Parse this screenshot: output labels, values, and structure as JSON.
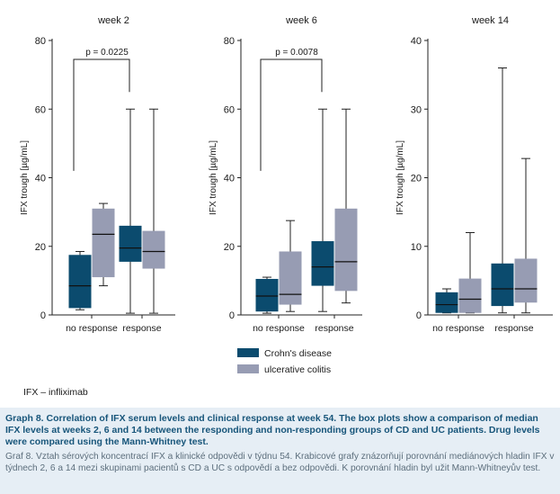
{
  "chart_data": [
    {
      "type": "box",
      "title": "week 2",
      "ylabel": "IFX trough [µg/mL]",
      "ylim": [
        0,
        80
      ],
      "yticks": [
        0,
        20,
        40,
        60,
        80
      ],
      "categories": [
        "no response",
        "response"
      ],
      "series": [
        {
          "name": "Crohn's disease",
          "boxes": [
            {
              "min": 1.5,
              "q1": 2,
              "median": 8.5,
              "q3": 17.5,
              "max": 18.5
            },
            {
              "min": 0.5,
              "q1": 15.5,
              "median": 19.5,
              "q3": 26,
              "max": 60
            }
          ]
        },
        {
          "name": "ulcerative colitis",
          "boxes": [
            {
              "min": 8.5,
              "q1": 11,
              "median": 23.5,
              "q3": 31,
              "max": 32.5
            },
            {
              "min": 0.5,
              "q1": 13.5,
              "median": 18.5,
              "q3": 24.5,
              "max": 60
            }
          ]
        }
      ],
      "annotation": "p = 0.0225"
    },
    {
      "type": "box",
      "title": "week 6",
      "ylabel": "IFX trough [µg/mL]",
      "ylim": [
        0,
        80
      ],
      "yticks": [
        0,
        20,
        40,
        60,
        80
      ],
      "categories": [
        "no response",
        "response"
      ],
      "series": [
        {
          "name": "Crohn's disease",
          "boxes": [
            {
              "min": 0.5,
              "q1": 1,
              "median": 5.5,
              "q3": 10.5,
              "max": 11
            },
            {
              "min": 1,
              "q1": 8.5,
              "median": 14,
              "q3": 21.5,
              "max": 60
            }
          ]
        },
        {
          "name": "ulcerative colitis",
          "boxes": [
            {
              "min": 1,
              "q1": 3,
              "median": 6,
              "q3": 18.5,
              "max": 27.5
            },
            {
              "min": 3.5,
              "q1": 7,
              "median": 15.5,
              "q3": 31,
              "max": 60
            }
          ]
        }
      ],
      "annotation": "p = 0.0078"
    },
    {
      "type": "box",
      "title": "week 14",
      "ylabel": "IFX trough [µg/mL]",
      "ylim": [
        0,
        40
      ],
      "yticks": [
        0,
        10,
        20,
        30,
        40
      ],
      "categories": [
        "no response",
        "response"
      ],
      "series": [
        {
          "name": "Crohn's disease",
          "boxes": [
            {
              "min": 0.3,
              "q1": 0.3,
              "median": 1.5,
              "q3": 3.3,
              "max": 3.8
            },
            {
              "min": 0.3,
              "q1": 1.3,
              "median": 3.8,
              "q3": 7.5,
              "max": 36
            }
          ]
        },
        {
          "name": "ulcerative colitis",
          "boxes": [
            {
              "min": 0.3,
              "q1": 0.3,
              "median": 2.3,
              "q3": 5.3,
              "max": 12
            },
            {
              "min": 0.3,
              "q1": 1.8,
              "median": 3.8,
              "q3": 8.2,
              "max": 22.8
            }
          ]
        }
      ],
      "annotation": ""
    }
  ],
  "legend": [
    {
      "label": "Crohn's disease",
      "color": "#0b4b6e"
    },
    {
      "label": "ulcerative colitis",
      "color": "#979cb3"
    }
  ],
  "abbreviation": "IFX – infliximab",
  "caption_en": "Graph 8. Correlation of IFX serum levels and clinical response at week 54. The box plots show a comparison of median IFX levels at weeks 2, 6 and 14 between the responding and non-responding groups of CD and UC patients. Drug levels were compared using the Mann-Whitney test.",
  "caption_cz": "Graf 8. Vztah sérových koncentrací IFX a klinické odpovědi v týdnu 54. Krabicové grafy znázorňují porovnání mediánových hladin IFX v týdnech 2, 6 a 14 mezi skupinami pacientů s CD a UC s odpovědí a bez odpovědi. K porovnání hladin byl užit Mann-Whitneyův test."
}
